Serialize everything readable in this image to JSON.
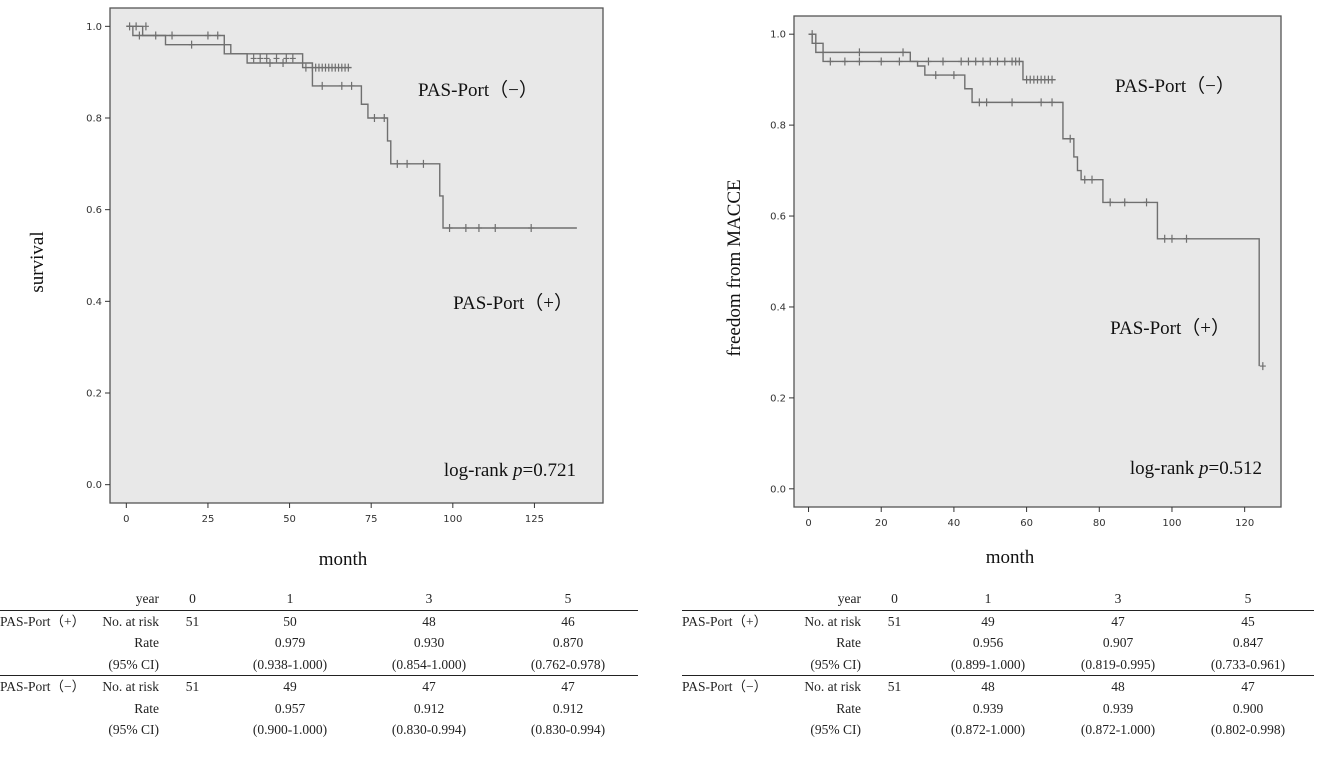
{
  "chart_data": [
    {
      "type": "line",
      "subtype": "kaplan-meier",
      "title": "",
      "xlabel": "month",
      "ylabel": "survival",
      "xlim": [
        -5,
        146
      ],
      "ylim": [
        -0.04,
        1.04
      ],
      "xticks": [
        0,
        25,
        50,
        75,
        100,
        125
      ],
      "xtick_labels": [
        "0",
        "25",
        "50",
        "75",
        "100",
        "125"
      ],
      "yticks": [
        0.0,
        0.2,
        0.4,
        0.6,
        0.8,
        1.0
      ],
      "ytick_labels": [
        "0.0",
        "0.2",
        "0.4",
        "0.6",
        "0.8",
        "1.0"
      ],
      "grid": false,
      "annotation": "log-rank p=0.721",
      "annotation_prefix": "log-rank ",
      "annotation_p": "p",
      "annotation_value": "=0.721",
      "series": [
        {
          "name": "PAS-Port（+）",
          "steps": [
            [
              0,
              1.0
            ],
            [
              2,
              0.98
            ],
            [
              12,
              0.96
            ],
            [
              30,
              0.94
            ],
            [
              37,
              0.92
            ],
            [
              57,
              0.87
            ],
            [
              72,
              0.83
            ],
            [
              74,
              0.8
            ],
            [
              80,
              0.75
            ],
            [
              81,
              0.7
            ],
            [
              96,
              0.63
            ],
            [
              97,
              0.56
            ],
            [
              138,
              0.56
            ]
          ],
          "censor": [
            [
              4,
              0.98
            ],
            [
              9,
              0.98
            ],
            [
              20,
              0.96
            ],
            [
              44,
              0.92
            ],
            [
              48,
              0.92
            ],
            [
              60,
              0.87
            ],
            [
              66,
              0.87
            ],
            [
              69,
              0.87
            ],
            [
              76,
              0.8
            ],
            [
              79,
              0.8
            ],
            [
              83,
              0.7
            ],
            [
              86,
              0.7
            ],
            [
              91,
              0.7
            ],
            [
              99,
              0.56
            ],
            [
              104,
              0.56
            ],
            [
              108,
              0.56
            ],
            [
              113,
              0.56
            ],
            [
              124,
              0.56
            ]
          ]
        },
        {
          "name": "PAS-Port（−）",
          "steps": [
            [
              0,
              1.0
            ],
            [
              5,
              0.98
            ],
            [
              30,
              0.96
            ],
            [
              32,
              0.94
            ],
            [
              54,
              0.91
            ],
            [
              69,
              0.91
            ]
          ],
          "censor": [
            [
              1,
              1.0
            ],
            [
              3,
              1.0
            ],
            [
              6,
              1.0
            ],
            [
              14,
              0.98
            ],
            [
              25,
              0.98
            ],
            [
              28,
              0.98
            ],
            [
              39,
              0.93
            ],
            [
              41,
              0.93
            ],
            [
              43,
              0.93
            ],
            [
              46,
              0.93
            ],
            [
              49,
              0.93
            ],
            [
              51,
              0.93
            ],
            [
              55,
              0.91
            ],
            [
              57,
              0.91
            ],
            [
              58,
              0.91
            ],
            [
              59,
              0.91
            ],
            [
              60,
              0.91
            ],
            [
              61,
              0.91
            ],
            [
              62,
              0.91
            ],
            [
              63,
              0.91
            ],
            [
              64,
              0.91
            ],
            [
              65,
              0.91
            ],
            [
              66,
              0.91
            ],
            [
              67,
              0.91
            ],
            [
              68,
              0.91
            ]
          ]
        }
      ]
    },
    {
      "type": "line",
      "subtype": "kaplan-meier",
      "title": "",
      "xlabel": "month",
      "ylabel": "freedom from MACCE",
      "xlim": [
        -4,
        130
      ],
      "ylim": [
        -0.04,
        1.04
      ],
      "xticks": [
        0,
        20,
        40,
        60,
        80,
        100,
        120
      ],
      "xtick_labels": [
        "0",
        "20",
        "40",
        "60",
        "80",
        "100",
        "120"
      ],
      "yticks": [
        0.0,
        0.2,
        0.4,
        0.6,
        0.8,
        1.0
      ],
      "ytick_labels": [
        "0.0",
        "0.2",
        "0.4",
        "0.6",
        "0.8",
        "1.0"
      ],
      "grid": false,
      "annotation": "log-rank p=0.512",
      "annotation_prefix": "log-rank ",
      "annotation_p": "p",
      "annotation_value": "=0.512",
      "series": [
        {
          "name": "PAS-Port（+）",
          "steps": [
            [
              0,
              1.0
            ],
            [
              2,
              0.98
            ],
            [
              4,
              0.96
            ],
            [
              28,
              0.94
            ],
            [
              30,
              0.93
            ],
            [
              32,
              0.91
            ],
            [
              43,
              0.88
            ],
            [
              45,
              0.85
            ],
            [
              70,
              0.77
            ],
            [
              73,
              0.73
            ],
            [
              74,
              0.7
            ],
            [
              75,
              0.68
            ],
            [
              81,
              0.63
            ],
            [
              96,
              0.55
            ],
            [
              124,
              0.27
            ]
          ],
          "censor": [
            [
              14,
              0.96
            ],
            [
              26,
              0.96
            ],
            [
              35,
              0.91
            ],
            [
              40,
              0.91
            ],
            [
              47,
              0.85
            ],
            [
              49,
              0.85
            ],
            [
              56,
              0.85
            ],
            [
              64,
              0.85
            ],
            [
              67,
              0.85
            ],
            [
              72,
              0.77
            ],
            [
              76,
              0.68
            ],
            [
              78,
              0.68
            ],
            [
              83,
              0.63
            ],
            [
              87,
              0.63
            ],
            [
              93,
              0.63
            ],
            [
              98,
              0.55
            ],
            [
              100,
              0.55
            ],
            [
              104,
              0.55
            ],
            [
              125,
              0.27
            ]
          ]
        },
        {
          "name": "PAS-Port（−）",
          "steps": [
            [
              0,
              1.0
            ],
            [
              1,
              0.98
            ],
            [
              2,
              0.96
            ],
            [
              4,
              0.94
            ],
            [
              59,
              0.9
            ],
            [
              68,
              0.9
            ]
          ],
          "censor": [
            [
              1,
              1.0
            ],
            [
              6,
              0.94
            ],
            [
              10,
              0.94
            ],
            [
              14,
              0.94
            ],
            [
              20,
              0.94
            ],
            [
              25,
              0.94
            ],
            [
              33,
              0.94
            ],
            [
              37,
              0.94
            ],
            [
              42,
              0.94
            ],
            [
              44,
              0.94
            ],
            [
              46,
              0.94
            ],
            [
              48,
              0.94
            ],
            [
              50,
              0.94
            ],
            [
              52,
              0.94
            ],
            [
              54,
              0.94
            ],
            [
              56,
              0.94
            ],
            [
              57,
              0.94
            ],
            [
              58,
              0.94
            ],
            [
              60,
              0.9
            ],
            [
              61,
              0.9
            ],
            [
              62,
              0.9
            ],
            [
              63,
              0.9
            ],
            [
              64,
              0.9
            ],
            [
              65,
              0.9
            ],
            [
              66,
              0.9
            ],
            [
              67,
              0.9
            ]
          ]
        }
      ]
    }
  ],
  "tables": [
    {
      "header": [
        "",
        "year",
        "0",
        "1",
        "3",
        "5"
      ],
      "groups": [
        {
          "name": "PAS-Port（+）",
          "rows": [
            [
              "No. at risk",
              "51",
              "50",
              "48",
              "46"
            ],
            [
              "Rate",
              "",
              "0.979",
              "0.930",
              "0.870"
            ],
            [
              "(95% CI)",
              "",
              "(0.938-1.000)",
              "(0.854-1.000)",
              "(0.762-0.978)"
            ]
          ]
        },
        {
          "name": "PAS-Port（−）",
          "rows": [
            [
              "No. at risk",
              "51",
              "49",
              "47",
              "47"
            ],
            [
              "Rate",
              "",
              "0.957",
              "0.912",
              "0.912"
            ],
            [
              "(95% CI)",
              "",
              "(0.900-1.000)",
              "(0.830-0.994)",
              "(0.830-0.994)"
            ]
          ]
        }
      ]
    },
    {
      "header": [
        "",
        "year",
        "0",
        "1",
        "3",
        "5"
      ],
      "groups": [
        {
          "name": "PAS-Port（+）",
          "rows": [
            [
              "No. at risk",
              "51",
              "49",
              "47",
              "45"
            ],
            [
              "Rate",
              "",
              "0.956",
              "0.907",
              "0.847"
            ],
            [
              "(95% CI)",
              "",
              "(0.899-1.000)",
              "(0.819-0.995)",
              "(0.733-0.961)"
            ]
          ]
        },
        {
          "name": "PAS-Port（−）",
          "rows": [
            [
              "No. at risk",
              "51",
              "48",
              "48",
              "47"
            ],
            [
              "Rate",
              "",
              "0.939",
              "0.939",
              "0.900"
            ],
            [
              "(95% CI)",
              "",
              "(0.872-1.000)",
              "(0.872-1.000)",
              "(0.802-0.998)"
            ]
          ]
        }
      ]
    }
  ],
  "colors": {
    "plot_bg": "#e8e8e8",
    "frame": "#555555",
    "curve": "#6f6f6f",
    "text": "#111111"
  }
}
